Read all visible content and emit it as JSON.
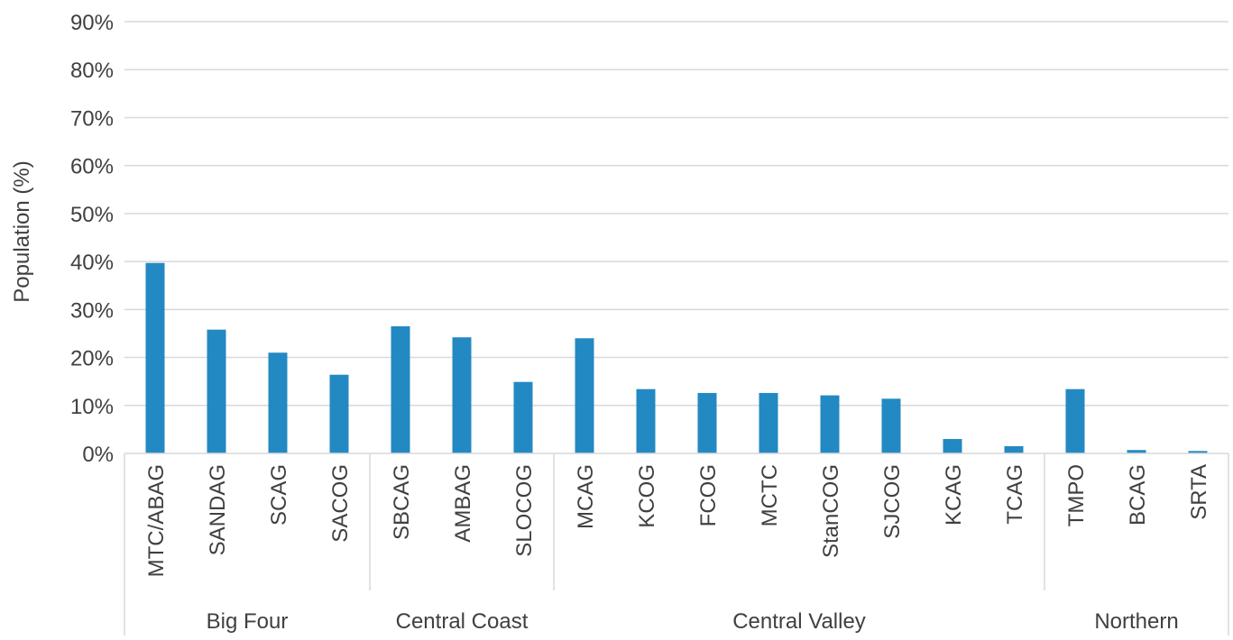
{
  "chart_data": {
    "type": "bar",
    "ylabel": "Population (%)",
    "ylim": [
      0,
      90
    ],
    "yticks": [
      "0%",
      "10%",
      "20%",
      "30%",
      "40%",
      "50%",
      "60%",
      "70%",
      "80%",
      "90%"
    ],
    "grid": true,
    "categories": [
      "MTC/ABAG",
      "SANDAG",
      "SCAG",
      "SACOG",
      "SBCAG",
      "AMBAG",
      "SLOCOG",
      "MCAG",
      "KCOG",
      "FCOG",
      "MCTC",
      "StanCOG",
      "SJCOG",
      "KCAG",
      "TCAG",
      "TMPO",
      "BCAG",
      "SRTA"
    ],
    "values": [
      39.7,
      25.8,
      21.0,
      16.4,
      26.5,
      24.2,
      14.9,
      24.0,
      13.4,
      12.6,
      12.6,
      12.1,
      11.4,
      3.0,
      1.5,
      13.4,
      0.7,
      0.5
    ],
    "groups": [
      {
        "label": "Big Four",
        "count": 4
      },
      {
        "label": "Central Coast",
        "count": 3
      },
      {
        "label": "Central Valley",
        "count": 8
      },
      {
        "label": "Northern",
        "count": 3
      }
    ],
    "bar_color": "#2389c2"
  }
}
